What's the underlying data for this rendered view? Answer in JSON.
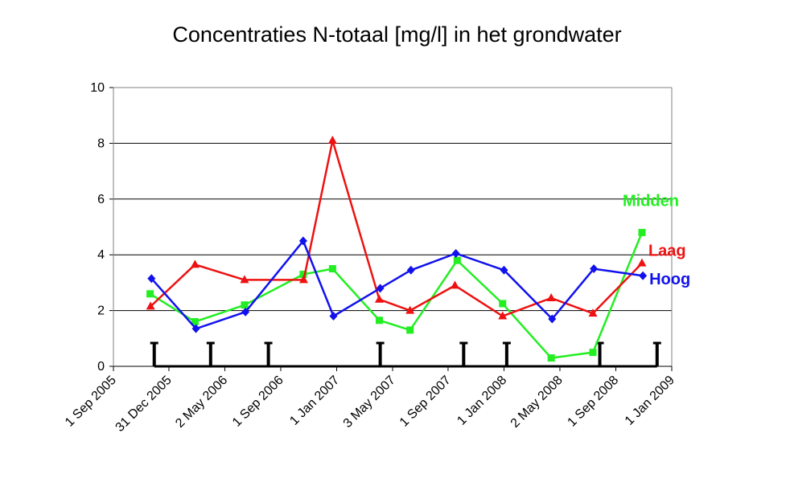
{
  "chart_data": {
    "type": "line",
    "title": "Concentraties N-totaal [mg/l] in het grondwater",
    "xlabel": "",
    "ylabel": "",
    "ylim": [
      0,
      10
    ],
    "yticks": [
      "0",
      "2",
      "4",
      "6",
      "8",
      "10"
    ],
    "xlim": [
      "2005-09-01",
      "2009-01-01"
    ],
    "xticks": [
      {
        "date": "2005-09-01",
        "label": "1 Sep 2005"
      },
      {
        "date": "2005-12-31",
        "label": "31 Dec 2005"
      },
      {
        "date": "2006-05-02",
        "label": "2 May 2006"
      },
      {
        "date": "2006-09-01",
        "label": "1 Sep 2006"
      },
      {
        "date": "2007-01-01",
        "label": "1 Jan 2007"
      },
      {
        "date": "2007-05-03",
        "label": "3 May 2007"
      },
      {
        "date": "2007-09-01",
        "label": "1 Sep 2007"
      },
      {
        "date": "2008-01-01",
        "label": "1 Jan 2008"
      },
      {
        "date": "2008-05-02",
        "label": "2 May 2008"
      },
      {
        "date": "2008-09-01",
        "label": "1 Sep 2008"
      },
      {
        "date": "2009-01-01",
        "label": "1 Jan 2009"
      }
    ],
    "grid": true,
    "legend": "inline labels at series ends",
    "series": [
      {
        "name": "Midden",
        "color": "#22EE22",
        "marker": "square",
        "points": [
          {
            "x": "2005-11-20",
            "y": 2.6
          },
          {
            "x": "2006-02-26",
            "y": 1.6
          },
          {
            "x": "2006-06-14",
            "y": 2.2
          },
          {
            "x": "2006-10-20",
            "y": 3.3
          },
          {
            "x": "2006-12-23",
            "y": 3.5
          },
          {
            "x": "2007-04-04",
            "y": 1.65
          },
          {
            "x": "2007-06-10",
            "y": 1.3
          },
          {
            "x": "2007-09-21",
            "y": 3.8
          },
          {
            "x": "2007-12-29",
            "y": 2.25
          },
          {
            "x": "2008-04-13",
            "y": 0.3
          },
          {
            "x": "2008-07-13",
            "y": 0.5
          },
          {
            "x": "2008-10-28",
            "y": 4.8
          }
        ]
      },
      {
        "name": "Laag",
        "color": "#EE1111",
        "marker": "triangle",
        "points": [
          {
            "x": "2005-11-21",
            "y": 2.15
          },
          {
            "x": "2006-02-26",
            "y": 3.65
          },
          {
            "x": "2006-06-14",
            "y": 3.1
          },
          {
            "x": "2006-10-21",
            "y": 3.1
          },
          {
            "x": "2006-12-23",
            "y": 8.1
          },
          {
            "x": "2007-04-04",
            "y": 2.4
          },
          {
            "x": "2007-06-10",
            "y": 2.0
          },
          {
            "x": "2007-09-16",
            "y": 2.9
          },
          {
            "x": "2007-12-29",
            "y": 1.8
          },
          {
            "x": "2008-04-13",
            "y": 2.45
          },
          {
            "x": "2008-07-13",
            "y": 1.9
          },
          {
            "x": "2008-10-28",
            "y": 3.7
          }
        ]
      },
      {
        "name": "Hoog",
        "color": "#1111EE",
        "marker": "diamond",
        "points": [
          {
            "x": "2005-11-23",
            "y": 3.15
          },
          {
            "x": "2006-02-28",
            "y": 1.35
          },
          {
            "x": "2006-06-16",
            "y": 1.95
          },
          {
            "x": "2006-10-20",
            "y": 4.5
          },
          {
            "x": "2006-12-25",
            "y": 1.8
          },
          {
            "x": "2007-04-06",
            "y": 2.8
          },
          {
            "x": "2007-06-12",
            "y": 3.45
          },
          {
            "x": "2007-09-18",
            "y": 4.05
          },
          {
            "x": "2008-01-01",
            "y": 3.45
          },
          {
            "x": "2008-04-15",
            "y": 1.7
          },
          {
            "x": "2008-07-15",
            "y": 3.5
          },
          {
            "x": "2008-10-30",
            "y": 3.25
          }
        ]
      }
    ],
    "bars_color": "#000000",
    "bar_events": [
      {
        "x": "2005-11-29",
        "y": 0.85
      },
      {
        "x": "2006-04-01",
        "y": 0.85
      },
      {
        "x": "2006-08-05",
        "y": 0.85
      },
      {
        "x": "2007-04-06",
        "y": 0.85
      },
      {
        "x": "2007-10-05",
        "y": 0.85
      },
      {
        "x": "2008-01-07",
        "y": 0.85
      },
      {
        "x": "2008-07-28",
        "y": 0.85
      },
      {
        "x": "2008-11-30",
        "y": 0.85
      }
    ]
  }
}
